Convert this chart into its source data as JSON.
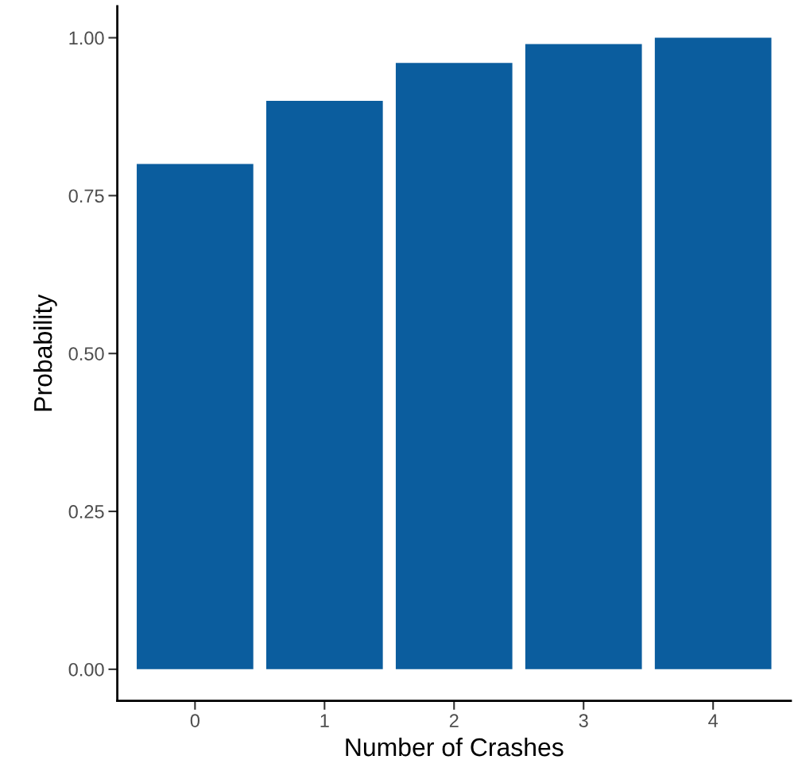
{
  "chart_data": {
    "type": "bar",
    "xlabel": "Number of Crashes",
    "ylabel": "Probability",
    "categories": [
      "0",
      "1",
      "2",
      "3",
      "4"
    ],
    "values": [
      0.8,
      0.9,
      0.96,
      0.99,
      1.0
    ],
    "color": "#0b5d9e",
    "ylim": [
      -0.05,
      1.05
    ],
    "yticks": [
      {
        "value": 0,
        "label": "0.00"
      },
      {
        "value": 0.25,
        "label": "0.25"
      },
      {
        "value": 0.5,
        "label": "0.50"
      },
      {
        "value": 0.75,
        "label": "0.75"
      },
      {
        "value": 1.0,
        "label": "1.00"
      }
    ],
    "grid": false,
    "legend": false
  }
}
